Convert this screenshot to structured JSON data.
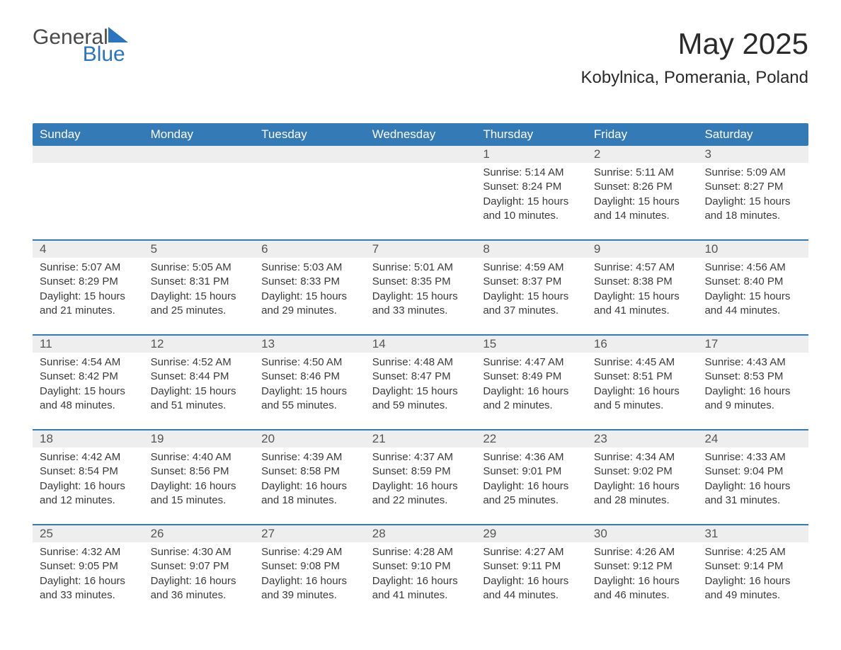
{
  "logo": {
    "text1": "General",
    "text2": "Blue"
  },
  "title": "May 2025",
  "location": "Kobylnica, Pomerania, Poland",
  "colors": {
    "header_bg": "#337ab7",
    "header_text": "#ffffff",
    "date_bg": "#eeeeee",
    "divider": "#337ab7",
    "body_text": "#3a3a3a",
    "accent": "#2b74c0"
  },
  "weekdays": [
    "Sunday",
    "Monday",
    "Tuesday",
    "Wednesday",
    "Thursday",
    "Friday",
    "Saturday"
  ],
  "weeks": [
    [
      {
        "date": "",
        "sunrise": "",
        "sunset": "",
        "daylight": ""
      },
      {
        "date": "",
        "sunrise": "",
        "sunset": "",
        "daylight": ""
      },
      {
        "date": "",
        "sunrise": "",
        "sunset": "",
        "daylight": ""
      },
      {
        "date": "",
        "sunrise": "",
        "sunset": "",
        "daylight": ""
      },
      {
        "date": "1",
        "sunrise": "Sunrise: 5:14 AM",
        "sunset": "Sunset: 8:24 PM",
        "daylight": "Daylight: 15 hours and 10 minutes."
      },
      {
        "date": "2",
        "sunrise": "Sunrise: 5:11 AM",
        "sunset": "Sunset: 8:26 PM",
        "daylight": "Daylight: 15 hours and 14 minutes."
      },
      {
        "date": "3",
        "sunrise": "Sunrise: 5:09 AM",
        "sunset": "Sunset: 8:27 PM",
        "daylight": "Daylight: 15 hours and 18 minutes."
      }
    ],
    [
      {
        "date": "4",
        "sunrise": "Sunrise: 5:07 AM",
        "sunset": "Sunset: 8:29 PM",
        "daylight": "Daylight: 15 hours and 21 minutes."
      },
      {
        "date": "5",
        "sunrise": "Sunrise: 5:05 AM",
        "sunset": "Sunset: 8:31 PM",
        "daylight": "Daylight: 15 hours and 25 minutes."
      },
      {
        "date": "6",
        "sunrise": "Sunrise: 5:03 AM",
        "sunset": "Sunset: 8:33 PM",
        "daylight": "Daylight: 15 hours and 29 minutes."
      },
      {
        "date": "7",
        "sunrise": "Sunrise: 5:01 AM",
        "sunset": "Sunset: 8:35 PM",
        "daylight": "Daylight: 15 hours and 33 minutes."
      },
      {
        "date": "8",
        "sunrise": "Sunrise: 4:59 AM",
        "sunset": "Sunset: 8:37 PM",
        "daylight": "Daylight: 15 hours and 37 minutes."
      },
      {
        "date": "9",
        "sunrise": "Sunrise: 4:57 AM",
        "sunset": "Sunset: 8:38 PM",
        "daylight": "Daylight: 15 hours and 41 minutes."
      },
      {
        "date": "10",
        "sunrise": "Sunrise: 4:56 AM",
        "sunset": "Sunset: 8:40 PM",
        "daylight": "Daylight: 15 hours and 44 minutes."
      }
    ],
    [
      {
        "date": "11",
        "sunrise": "Sunrise: 4:54 AM",
        "sunset": "Sunset: 8:42 PM",
        "daylight": "Daylight: 15 hours and 48 minutes."
      },
      {
        "date": "12",
        "sunrise": "Sunrise: 4:52 AM",
        "sunset": "Sunset: 8:44 PM",
        "daylight": "Daylight: 15 hours and 51 minutes."
      },
      {
        "date": "13",
        "sunrise": "Sunrise: 4:50 AM",
        "sunset": "Sunset: 8:46 PM",
        "daylight": "Daylight: 15 hours and 55 minutes."
      },
      {
        "date": "14",
        "sunrise": "Sunrise: 4:48 AM",
        "sunset": "Sunset: 8:47 PM",
        "daylight": "Daylight: 15 hours and 59 minutes."
      },
      {
        "date": "15",
        "sunrise": "Sunrise: 4:47 AM",
        "sunset": "Sunset: 8:49 PM",
        "daylight": "Daylight: 16 hours and 2 minutes."
      },
      {
        "date": "16",
        "sunrise": "Sunrise: 4:45 AM",
        "sunset": "Sunset: 8:51 PM",
        "daylight": "Daylight: 16 hours and 5 minutes."
      },
      {
        "date": "17",
        "sunrise": "Sunrise: 4:43 AM",
        "sunset": "Sunset: 8:53 PM",
        "daylight": "Daylight: 16 hours and 9 minutes."
      }
    ],
    [
      {
        "date": "18",
        "sunrise": "Sunrise: 4:42 AM",
        "sunset": "Sunset: 8:54 PM",
        "daylight": "Daylight: 16 hours and 12 minutes."
      },
      {
        "date": "19",
        "sunrise": "Sunrise: 4:40 AM",
        "sunset": "Sunset: 8:56 PM",
        "daylight": "Daylight: 16 hours and 15 minutes."
      },
      {
        "date": "20",
        "sunrise": "Sunrise: 4:39 AM",
        "sunset": "Sunset: 8:58 PM",
        "daylight": "Daylight: 16 hours and 18 minutes."
      },
      {
        "date": "21",
        "sunrise": "Sunrise: 4:37 AM",
        "sunset": "Sunset: 8:59 PM",
        "daylight": "Daylight: 16 hours and 22 minutes."
      },
      {
        "date": "22",
        "sunrise": "Sunrise: 4:36 AM",
        "sunset": "Sunset: 9:01 PM",
        "daylight": "Daylight: 16 hours and 25 minutes."
      },
      {
        "date": "23",
        "sunrise": "Sunrise: 4:34 AM",
        "sunset": "Sunset: 9:02 PM",
        "daylight": "Daylight: 16 hours and 28 minutes."
      },
      {
        "date": "24",
        "sunrise": "Sunrise: 4:33 AM",
        "sunset": "Sunset: 9:04 PM",
        "daylight": "Daylight: 16 hours and 31 minutes."
      }
    ],
    [
      {
        "date": "25",
        "sunrise": "Sunrise: 4:32 AM",
        "sunset": "Sunset: 9:05 PM",
        "daylight": "Daylight: 16 hours and 33 minutes."
      },
      {
        "date": "26",
        "sunrise": "Sunrise: 4:30 AM",
        "sunset": "Sunset: 9:07 PM",
        "daylight": "Daylight: 16 hours and 36 minutes."
      },
      {
        "date": "27",
        "sunrise": "Sunrise: 4:29 AM",
        "sunset": "Sunset: 9:08 PM",
        "daylight": "Daylight: 16 hours and 39 minutes."
      },
      {
        "date": "28",
        "sunrise": "Sunrise: 4:28 AM",
        "sunset": "Sunset: 9:10 PM",
        "daylight": "Daylight: 16 hours and 41 minutes."
      },
      {
        "date": "29",
        "sunrise": "Sunrise: 4:27 AM",
        "sunset": "Sunset: 9:11 PM",
        "daylight": "Daylight: 16 hours and 44 minutes."
      },
      {
        "date": "30",
        "sunrise": "Sunrise: 4:26 AM",
        "sunset": "Sunset: 9:12 PM",
        "daylight": "Daylight: 16 hours and 46 minutes."
      },
      {
        "date": "31",
        "sunrise": "Sunrise: 4:25 AM",
        "sunset": "Sunset: 9:14 PM",
        "daylight": "Daylight: 16 hours and 49 minutes."
      }
    ]
  ]
}
